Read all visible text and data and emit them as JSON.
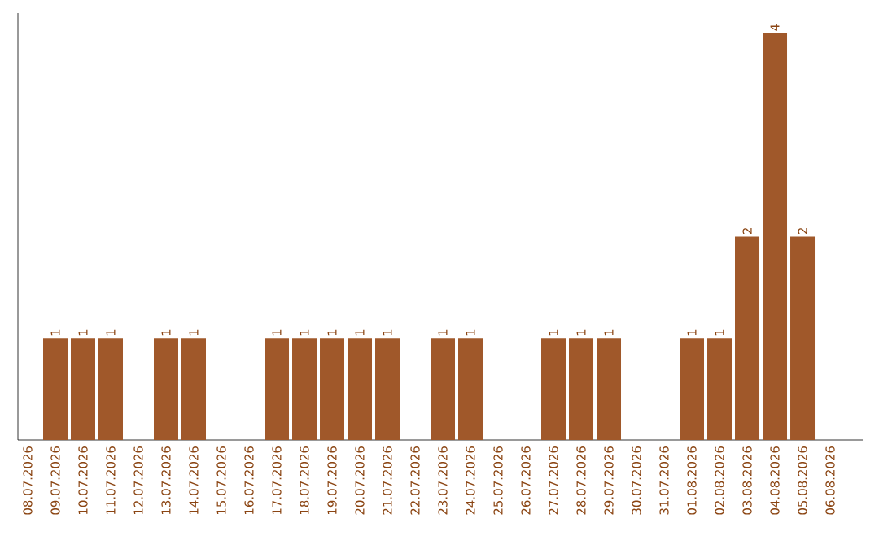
{
  "chart_data": {
    "type": "bar",
    "categories": [
      "08.07.2026",
      "09.07.2026",
      "10.07.2026",
      "11.07.2026",
      "12.07.2026",
      "13.07.2026",
      "14.07.2026",
      "15.07.2026",
      "16.07.2026",
      "17.07.2026",
      "18.07.2026",
      "19.07.2026",
      "20.07.2026",
      "21.07.2026",
      "22.07.2026",
      "23.07.2026",
      "24.07.2026",
      "25.07.2026",
      "26.07.2026",
      "27.07.2026",
      "28.07.2026",
      "29.07.2026",
      "30.07.2026",
      "31.07.2026",
      "01.08.2026",
      "02.08.2026",
      "03.08.2026",
      "04.08.2026",
      "05.08.2026",
      "06.08.2026"
    ],
    "values": [
      0,
      1,
      1,
      1,
      0,
      1,
      1,
      0,
      0,
      1,
      1,
      1,
      1,
      1,
      0,
      1,
      1,
      0,
      0,
      1,
      1,
      1,
      0,
      0,
      1,
      1,
      2,
      4,
      2,
      0
    ],
    "value_labels": [
      null,
      "1",
      "1",
      "1",
      null,
      "1",
      "1",
      null,
      null,
      "1",
      "1",
      "1",
      "1",
      "1",
      null,
      "1",
      "1",
      null,
      null,
      "1",
      "1",
      "1",
      null,
      null,
      "1",
      "1",
      "2",
      "4",
      "2",
      null
    ],
    "color": "#a0582a",
    "ylim": [
      0,
      4.2
    ]
  }
}
